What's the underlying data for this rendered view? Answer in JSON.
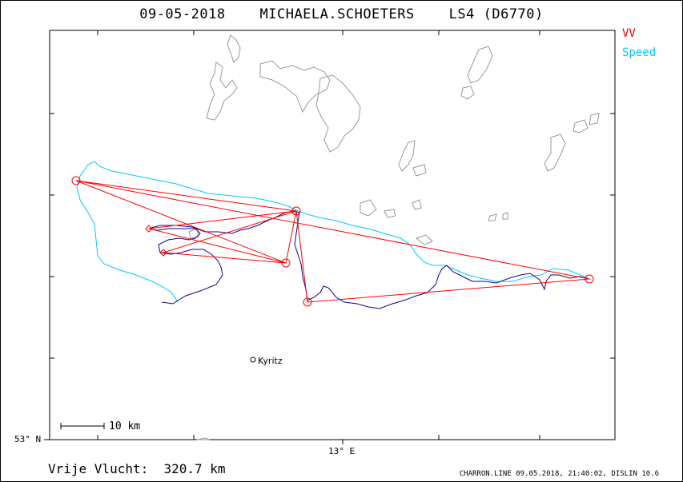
{
  "title": "09-05-2018    MICHAELA.SCHOETERS    LS4 (D6770)",
  "legend": [
    {
      "label": "VV",
      "color": "#ff0000"
    },
    {
      "label": "Speed",
      "color": "#00c8ff"
    }
  ],
  "axes": {
    "lat_label": "53° N",
    "lon_label": "13° E"
  },
  "scale_bar": {
    "label": "10 km"
  },
  "town": {
    "name": "Kyritz"
  },
  "footer": {
    "distance": "Vrije Vlucht:  320.7 km",
    "credits": "CHARRON.LINE 09.05.2018, 21:40:02, DISLIN 10.6"
  },
  "colors": {
    "triangle": "#ff0000",
    "speed_track": "#00c8ff",
    "flight_track": "#1a0080",
    "lakes": "#999999"
  }
}
